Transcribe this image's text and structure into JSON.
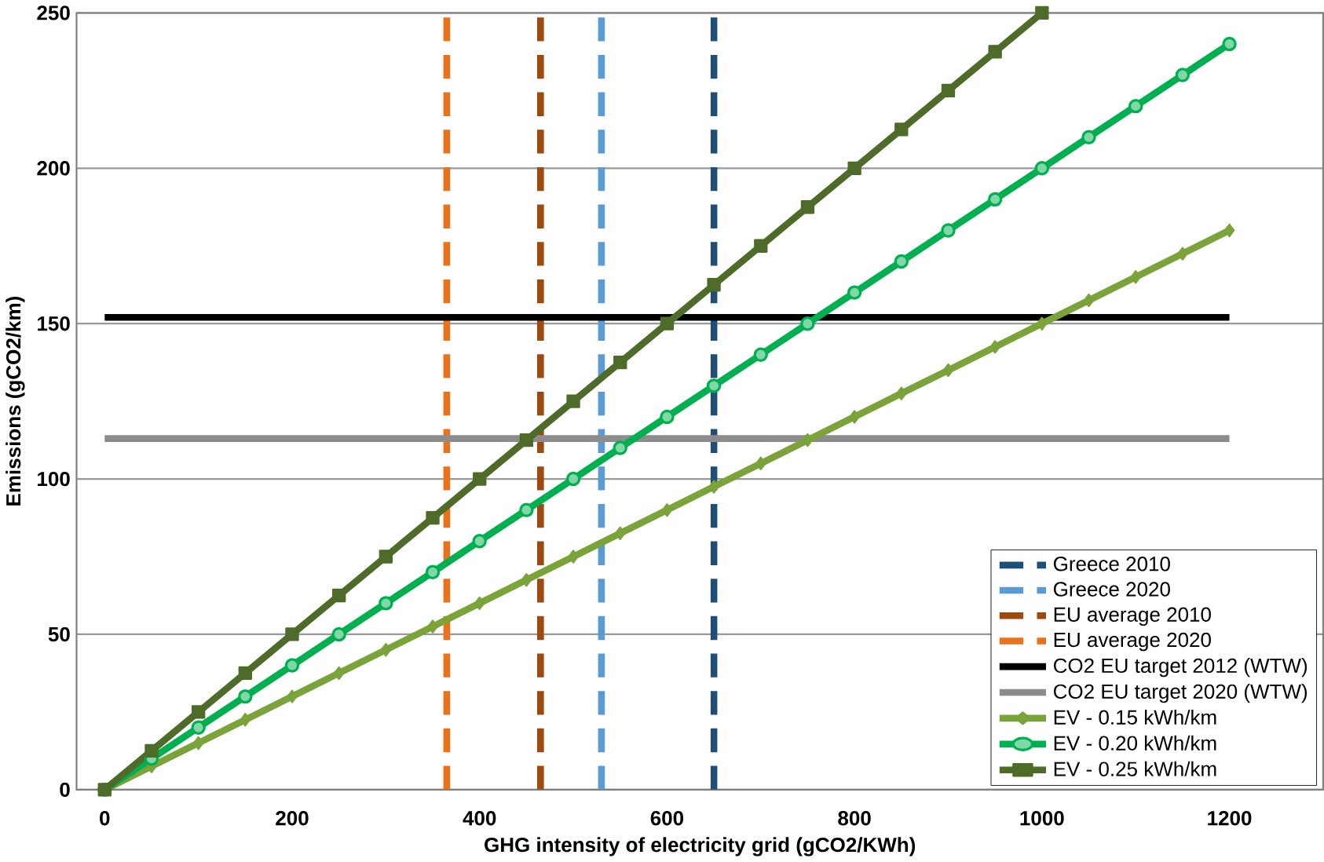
{
  "chart_data": {
    "type": "line",
    "xlabel": "GHG intensity of electricity grid (gCO2/KWh)",
    "ylabel": "Emissions (gCO2/km)",
    "xlim": [
      -30,
      1300
    ],
    "ylim": [
      0,
      250
    ],
    "xticks": [
      0,
      200,
      400,
      600,
      800,
      1000,
      1200
    ],
    "yticks": [
      0,
      50,
      100,
      150,
      200,
      250
    ],
    "grid": "y",
    "legend": "bottom right",
    "series": [
      {
        "name": "Greece 2010",
        "color": "#1f4e79",
        "line_style": "dashed",
        "marker": "none",
        "x": [
          650,
          650
        ],
        "values": [
          0,
          250
        ]
      },
      {
        "name": "Greece 2020",
        "color": "#5b9bd5",
        "line_style": "dashed",
        "marker": "none",
        "x": [
          530,
          530
        ],
        "values": [
          0,
          250
        ]
      },
      {
        "name": "EU average 2010",
        "color": "#9c4a0f",
        "line_style": "dashed",
        "marker": "none",
        "x": [
          465,
          465
        ],
        "values": [
          0,
          250
        ]
      },
      {
        "name": "EU average 2020",
        "color": "#e8731a",
        "line_style": "dashed",
        "marker": "none",
        "x": [
          365,
          365
        ],
        "values": [
          0,
          250
        ]
      },
      {
        "name": "CO2 EU target 2012 (WTW)",
        "color": "#000000",
        "line_style": "solid",
        "marker": "none",
        "x": [
          0,
          1200
        ],
        "values": [
          152,
          152
        ]
      },
      {
        "name": "CO2 EU target 2020 (WTW)",
        "color": "#8c8c8c",
        "line_style": "solid",
        "marker": "none",
        "x": [
          0,
          1200
        ],
        "values": [
          113,
          113
        ]
      },
      {
        "name": "EV - 0.15 kWh/km",
        "color": "#7aa33a",
        "line_style": "solid",
        "marker": "diamond",
        "x": [
          0,
          50,
          100,
          150,
          200,
          250,
          300,
          350,
          400,
          450,
          500,
          550,
          600,
          650,
          700,
          750,
          800,
          850,
          900,
          950,
          1000,
          1050,
          1100,
          1150,
          1200
        ],
        "values": [
          0,
          7.5,
          15,
          22.5,
          30,
          37.5,
          45,
          52.5,
          60,
          67.5,
          75,
          82.5,
          90,
          97.5,
          105,
          112.5,
          120,
          127.5,
          135,
          142.5,
          150,
          157.5,
          165,
          172.5,
          180
        ]
      },
      {
        "name": "EV - 0.20 kWh/km",
        "color": "#00b050",
        "line_style": "solid",
        "marker": "circle",
        "x": [
          0,
          50,
          100,
          150,
          200,
          250,
          300,
          350,
          400,
          450,
          500,
          550,
          600,
          650,
          700,
          750,
          800,
          850,
          900,
          950,
          1000,
          1050,
          1100,
          1150,
          1200
        ],
        "values": [
          0,
          10,
          20,
          30,
          40,
          50,
          60,
          70,
          80,
          90,
          100,
          110,
          120,
          130,
          140,
          150,
          160,
          170,
          180,
          190,
          200,
          210,
          220,
          230,
          240
        ]
      },
      {
        "name": "EV - 0.25 kWh/km",
        "color": "#4f6b2a",
        "line_style": "solid",
        "marker": "square",
        "x": [
          0,
          50,
          100,
          150,
          200,
          250,
          300,
          350,
          400,
          450,
          500,
          550,
          600,
          650,
          700,
          750,
          800,
          850,
          900,
          950,
          1000
        ],
        "values": [
          0,
          12.5,
          25,
          37.5,
          50,
          62.5,
          75,
          87.5,
          100,
          112.5,
          125,
          137.5,
          150,
          162.5,
          175,
          187.5,
          200,
          212.5,
          225,
          237.5,
          250
        ]
      }
    ]
  }
}
